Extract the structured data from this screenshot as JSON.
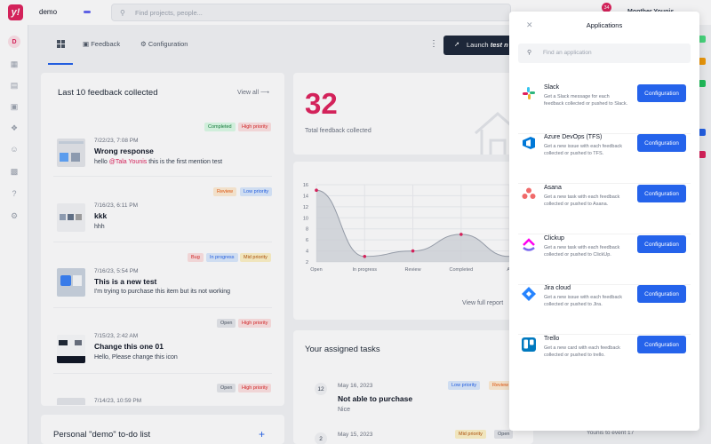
{
  "topbar": {
    "workspace": "demo",
    "search_placeholder": "Find projects, people...",
    "notification_count": "34",
    "user_name": "Monther Younis"
  },
  "tabs": [
    {
      "label": ""
    },
    {
      "label": "Feedback"
    },
    {
      "label": "Configuration"
    }
  ],
  "launch": {
    "label": "Launch",
    "name": "test n"
  },
  "feedback": {
    "title": "Last 10 feedback collected",
    "view_all": "View all",
    "items": [
      {
        "date": "7/22/23, 7:08 PM",
        "title": "Wrong response",
        "text_before": "hello ",
        "mention": "@Tala Younis",
        "text_after": " this is the first mention test",
        "badges": [
          "Completed",
          "High priority"
        ]
      },
      {
        "date": "7/16/23, 6:11 PM",
        "title": "kkk",
        "text": "hhh",
        "badges": [
          "Review",
          "Low priority"
        ]
      },
      {
        "date": "7/16/23, 5:54 PM",
        "title": "This is a new test",
        "text": "I'm trying to purchase this item but its not working",
        "badges": [
          "Bug",
          "In progress",
          "Mid priority"
        ]
      },
      {
        "date": "7/15/23, 2:42 AM",
        "title": "Change this one 01",
        "text": "Hello, Please change this icon",
        "badges": [
          "Open",
          "High priority"
        ]
      },
      {
        "date": "7/14/23, 10:59 PM",
        "badges": [
          "Open",
          "High priority"
        ]
      }
    ]
  },
  "total": {
    "value": "32",
    "label": "Total feedback collected"
  },
  "chart_data": {
    "type": "area",
    "categories": [
      "Open",
      "In progress",
      "Review",
      "Completed",
      "Archived"
    ],
    "values": [
      15,
      3,
      4,
      7,
      3
    ],
    "ylim": [
      2,
      16
    ],
    "yticks": [
      "16",
      "14",
      "12",
      "10",
      "8",
      "6",
      "4",
      "2"
    ],
    "category_labels": [
      "Open",
      "In progress",
      "Review",
      "Completed",
      "Ar"
    ],
    "grid": true,
    "view_full": "View full report"
  },
  "tasks": {
    "title": "Your assigned tasks",
    "items": [
      {
        "num": "12",
        "date": "May 16, 2023",
        "title": "Not able to purchase",
        "sub": "Nice",
        "badges": [
          "Low priority",
          "Review"
        ]
      },
      {
        "num": "2",
        "date": "May 15, 2023",
        "badges": [
          "Mid priority",
          "Open"
        ]
      }
    ],
    "footer_text": "Younis to event 17"
  },
  "todo": {
    "title": "Personal \"demo\" to-do list"
  },
  "modal": {
    "title": "Applications",
    "search_placeholder": "Find an application",
    "apps": [
      {
        "name": "Slack",
        "desc": "Get a Slack message for each feedback collected or pushed to Slack.",
        "button": "Configuration",
        "icon": "slack-icon"
      },
      {
        "name": "Azure DevOps (TFS)",
        "desc": "Get a new issue with each feedback collected or pushed to TFS.",
        "button": "Configuration",
        "icon": "azure-devops-icon"
      },
      {
        "name": "Asana",
        "desc": "Get a new task with each feedback collected or pushed to Asana.",
        "button": "Configuration",
        "icon": "asana-icon"
      },
      {
        "name": "Clickup",
        "desc": "Get a new task with each feedback collected or pushed to ClickUp.",
        "button": "Configuration",
        "icon": "clickup-icon"
      },
      {
        "name": "Jira cloud",
        "desc": "Get a new issue with each feedback collected or pushed to Jira.",
        "button": "Configuration",
        "icon": "jira-icon"
      },
      {
        "name": "Trello",
        "desc": "Get a new card with each feedback collected or pushed to trello.",
        "button": "Configuration",
        "icon": "trello-icon"
      }
    ]
  },
  "colors": {
    "brand": "#e0245e",
    "primary": "#2563eb",
    "dark": "#1e293b"
  }
}
